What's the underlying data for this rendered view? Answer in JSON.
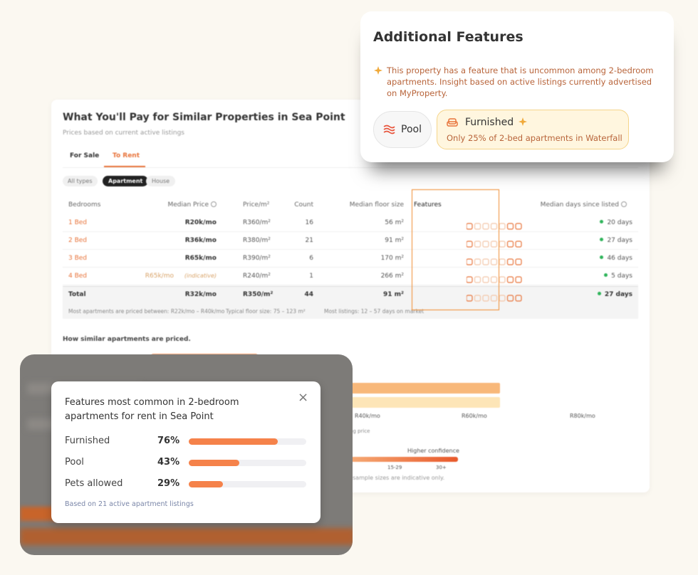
{
  "popover": {
    "title": "Additional Features",
    "insight": "This property has a feature that is uncommon among 2-bedroom apartments. Insight based on active listings currently advertised on MyProperty.",
    "chips": [
      {
        "label": "Pool"
      },
      {
        "label": "Furnished",
        "note": "Only 25% of 2-bed apartments in Waterfall"
      }
    ]
  },
  "main": {
    "title": "What You'll Pay for Similar Properties in Sea Point",
    "subtitle": "Prices based on current active listings",
    "tabs": [
      "For Sale",
      "To Rent"
    ],
    "filters": [
      "All types",
      "Apartment",
      "House"
    ],
    "table": {
      "headers": [
        "Bedrooms",
        "Median Price",
        "Price/m²",
        "Count",
        "Median floor size",
        "Features",
        "Median days since listed"
      ],
      "rows": [
        [
          "1 Bed",
          "R20k/mo",
          "R360/m²",
          "16",
          "56 m²",
          "20 days"
        ],
        [
          "2 Bed",
          "R36k/mo",
          "R380/m²",
          "21",
          "91 m²",
          "27 days"
        ],
        [
          "3 Bed",
          "R65k/mo",
          "R390/m²",
          "6",
          "170 m²",
          "46 days"
        ],
        [
          "4 Bed",
          "R65k/mo",
          "R240/m²",
          "1",
          "266 m²",
          "5 days"
        ]
      ],
      "indicative_note": "(indicative)",
      "total": [
        "Total",
        "R32k/mo",
        "R350/m²",
        "44",
        "91 m²",
        "27 days"
      ]
    },
    "footer": [
      "Most apartments are priced between: R22k/mo – R40k/mo",
      "Typical floor size: 75 – 123 m²",
      "Most listings: 12 – 57 days on market"
    ],
    "section_title": "How similar apartments are priced.",
    "axis_labels": [
      "R40k/mo",
      "R60k/mo",
      "R80k/mo"
    ],
    "axis_caption": "ing price",
    "confidence_title": "Higher confidence",
    "confidence_labels": [
      "15-29",
      "30+"
    ],
    "disclaimer": "sample sizes are indicative only."
  },
  "features_card": {
    "title": "Features most common in 2-bedroom apartments for rent in Sea Point",
    "close": "×",
    "rows": [
      {
        "name": "Furnished",
        "percent": 76,
        "label": "76%"
      },
      {
        "name": "Pool",
        "percent": 43,
        "label": "43%"
      },
      {
        "name": "Pets allowed",
        "percent": 29,
        "label": "29%"
      }
    ],
    "note": "Based on 21 active apartment listings"
  }
}
